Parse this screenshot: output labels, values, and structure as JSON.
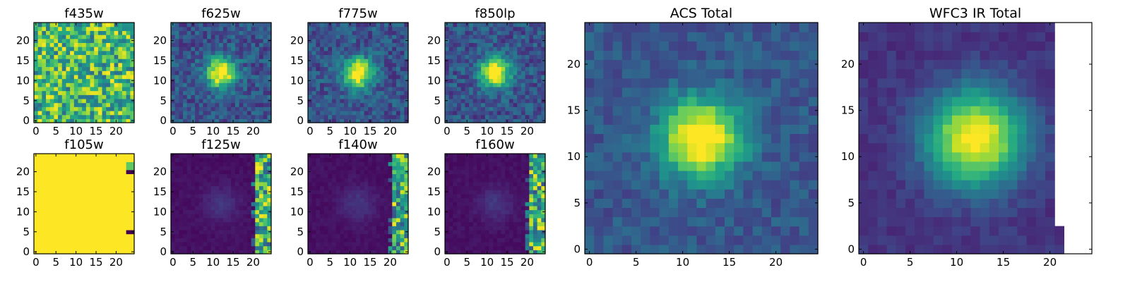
{
  "colormap": "viridis",
  "chart_data": [
    {
      "type": "heatmap",
      "title": "f435w",
      "pattern": "noise",
      "xticks": [
        0,
        5,
        10,
        15,
        20
      ],
      "yticks": [
        0,
        5,
        10,
        15,
        20
      ],
      "xlim": [
        -0.5,
        24.5
      ],
      "ylim": [
        -0.5,
        24.5
      ],
      "grid": false
    },
    {
      "type": "heatmap",
      "title": "f625w",
      "pattern": "source",
      "xticks": [
        0,
        5,
        10,
        15,
        20
      ],
      "yticks": [
        0,
        5,
        10,
        15,
        20
      ],
      "xlim": [
        -0.5,
        24.5
      ],
      "ylim": [
        -0.5,
        24.5
      ],
      "grid": false
    },
    {
      "type": "heatmap",
      "title": "f775w",
      "pattern": "source",
      "xticks": [
        0,
        5,
        10,
        15,
        20
      ],
      "yticks": [
        0,
        5,
        10,
        15,
        20
      ],
      "xlim": [
        -0.5,
        24.5
      ],
      "ylim": [
        -0.5,
        24.5
      ],
      "grid": false
    },
    {
      "type": "heatmap",
      "title": "f850lp",
      "pattern": "source",
      "xticks": [
        0,
        5,
        10,
        15,
        20
      ],
      "yticks": [
        0,
        5,
        10,
        15,
        20
      ],
      "xlim": [
        -0.5,
        24.5
      ],
      "ylim": [
        -0.5,
        24.5
      ],
      "grid": false
    },
    {
      "type": "heatmap",
      "title": "f105w",
      "pattern": "saturated",
      "xticks": [
        0,
        5,
        10,
        15,
        20
      ],
      "yticks": [
        0,
        5,
        10,
        15,
        20
      ],
      "xlim": [
        -0.5,
        24.5
      ],
      "ylim": [
        -0.5,
        24.5
      ],
      "grid": false
    },
    {
      "type": "heatmap",
      "title": "f125w",
      "pattern": "edge-artifact",
      "xticks": [
        0,
        5,
        10,
        15,
        20
      ],
      "yticks": [
        0,
        5,
        10,
        15,
        20
      ],
      "xlim": [
        -0.5,
        24.5
      ],
      "ylim": [
        -0.5,
        24.5
      ],
      "grid": false
    },
    {
      "type": "heatmap",
      "title": "f140w",
      "pattern": "edge-artifact",
      "xticks": [
        0,
        5,
        10,
        15,
        20
      ],
      "yticks": [
        0,
        5,
        10,
        15,
        20
      ],
      "xlim": [
        -0.5,
        24.5
      ],
      "ylim": [
        -0.5,
        24.5
      ],
      "grid": false
    },
    {
      "type": "heatmap",
      "title": "f160w",
      "pattern": "edge-artifact",
      "xticks": [
        0,
        5,
        10,
        15,
        20
      ],
      "yticks": [
        0,
        5,
        10,
        15,
        20
      ],
      "xlim": [
        -0.5,
        24.5
      ],
      "ylim": [
        -0.5,
        24.5
      ],
      "grid": false
    },
    {
      "type": "heatmap",
      "title": "ACS Total",
      "pattern": "source-smooth",
      "xticks": [
        0,
        5,
        10,
        15,
        20
      ],
      "yticks": [
        0,
        5,
        10,
        15,
        20
      ],
      "xlim": [
        -0.5,
        24.5
      ],
      "ylim": [
        -0.5,
        24.5
      ],
      "grid": false
    },
    {
      "type": "heatmap",
      "title": "WFC3 IR Total",
      "pattern": "broad-masked",
      "xticks": [
        0,
        5,
        10,
        15,
        20
      ],
      "yticks": [
        0,
        5,
        10,
        15,
        20
      ],
      "xlim": [
        -0.5,
        24.5
      ],
      "ylim": [
        -0.5,
        24.5
      ],
      "grid": false
    }
  ]
}
